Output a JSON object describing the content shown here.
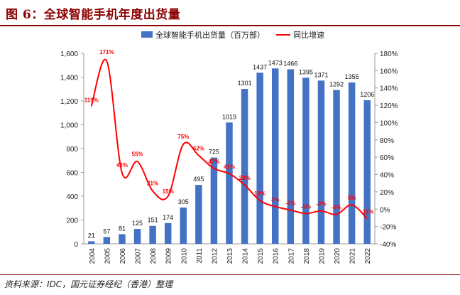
{
  "title": "图 6：全球智能手机年度出货量",
  "source": "资料来源：IDC，国元证券经纪（香港）整理",
  "chart_data": {
    "type": "bar",
    "categories": [
      "2004",
      "2005",
      "2006",
      "2007",
      "2008",
      "2009",
      "2010",
      "2011",
      "2012",
      "2013",
      "2014",
      "2015",
      "2016",
      "2017",
      "2018",
      "2019",
      "2020",
      "2021",
      "2022"
    ],
    "series": [
      {
        "name": "全球智能手机出货量（百万部）",
        "type": "bar",
        "axis": "left",
        "color": "#4472c4",
        "values": [
          21,
          57,
          81,
          125,
          151,
          174,
          305,
          495,
          725,
          1019,
          1301,
          1437,
          1473,
          1466,
          1395,
          1371,
          1292,
          1355,
          1206
        ],
        "labels": [
          "21",
          "57",
          "81",
          "125",
          "151",
          "174",
          "305",
          "495",
          "725",
          "1019",
          "1301",
          "1437",
          "1473",
          "1466",
          "1395",
          "1371",
          "1292",
          "1355",
          "1206"
        ]
      },
      {
        "name": "同比增速",
        "type": "line",
        "axis": "right",
        "color": "#ff0000",
        "values": [
          119,
          171,
          42,
          55,
          21,
          15,
          75,
          62,
          47,
          41,
          28,
          10,
          3,
          -1,
          -5,
          -2,
          -6,
          5,
          -11
        ],
        "labels": [
          "119%",
          "171%",
          "42%",
          "55%",
          "21%",
          "15%",
          "75%",
          "62%",
          "47%",
          "41%",
          "28%",
          "10%",
          "3%",
          "-1%",
          "-5%",
          "-2%",
          "-6%",
          "5%",
          "-11%"
        ]
      }
    ],
    "y_left": {
      "min": 0,
      "max": 1600,
      "ticks": [
        "0",
        "200",
        "400",
        "600",
        "800",
        "1,000",
        "1,200",
        "1,400",
        "1,600"
      ]
    },
    "y_right": {
      "min": -40,
      "max": 180,
      "ticks": [
        "-40%",
        "-20%",
        "0%",
        "20%",
        "40%",
        "60%",
        "80%",
        "100%",
        "120%",
        "140%",
        "160%",
        "180%"
      ]
    },
    "grid": false,
    "legend_position": "top"
  }
}
